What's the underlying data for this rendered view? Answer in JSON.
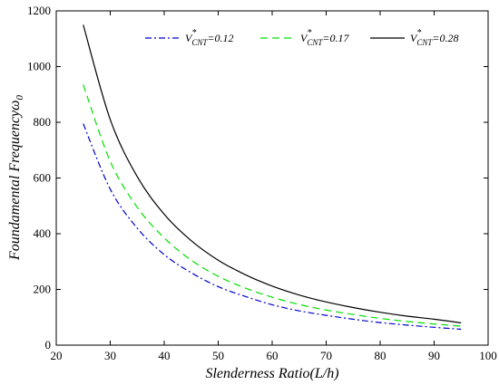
{
  "chart_data": {
    "type": "line",
    "xlabel": "Slenderness Ratio(L/h)",
    "ylabel": "Foundamental Frequency",
    "ylabel_symbol": "ω",
    "ylabel_subscript": "0",
    "xlim": [
      20,
      100
    ],
    "ylim": [
      0,
      1200
    ],
    "xticks": [
      20,
      30,
      40,
      50,
      60,
      70,
      80,
      90,
      100
    ],
    "yticks": [
      0,
      200,
      400,
      600,
      800,
      1000,
      1200
    ],
    "grid": false,
    "legend_position": "top",
    "legend_base": "V",
    "legend_sup": "*",
    "legend_sub": "CNT",
    "x": [
      25,
      30,
      35,
      40,
      45,
      50,
      55,
      60,
      65,
      70,
      75,
      80,
      85,
      90,
      95
    ],
    "series": [
      {
        "name": "=0.12",
        "color": "#0000cc",
        "dash": "dashdot",
        "values": [
          795,
          560,
          420,
          325,
          260,
          210,
          175,
          145,
          123,
          107,
          93,
          81,
          72,
          64,
          57
        ]
      },
      {
        "name": "=0.17",
        "color": "#00e000",
        "dash": "dashed",
        "values": [
          935,
          660,
          495,
          385,
          305,
          247,
          205,
          172,
          146,
          126,
          110,
          96,
          85,
          76,
          68
        ]
      },
      {
        "name": "=0.28",
        "color": "#000000",
        "dash": "solid",
        "values": [
          1150,
          810,
          605,
          470,
          375,
          305,
          253,
          212,
          180,
          155,
          135,
          118,
          104,
          93,
          80
        ]
      }
    ]
  }
}
